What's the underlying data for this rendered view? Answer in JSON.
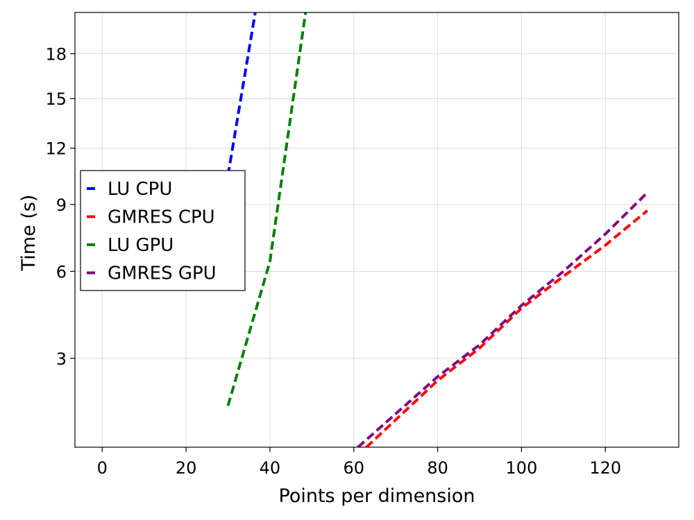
{
  "chart_data": {
    "type": "line",
    "title": "",
    "xlabel": "Points per dimension",
    "ylabel": "Time (s)",
    "xlim": [
      -6.5,
      137.5
    ],
    "ylim": [
      1.0,
      21.0
    ],
    "y_scale": "sqrt",
    "x_ticks": [
      0,
      20,
      40,
      60,
      80,
      100,
      120
    ],
    "x_tick_labels": [
      "0",
      "20",
      "40",
      "60",
      "80",
      "100",
      "120"
    ],
    "y_ticks": [
      3,
      6,
      9,
      12,
      15,
      18
    ],
    "y_tick_labels": [
      "3",
      "6",
      "9",
      "12",
      "15",
      "18"
    ],
    "grid": true,
    "legend_position": "left",
    "line_style": "dashed",
    "series": [
      {
        "name": "LU CPU",
        "color": "#0000ff",
        "points": [
          [
            30,
            10.5
          ],
          [
            36.5,
            21.0
          ]
        ]
      },
      {
        "name": "GMRES CPU",
        "color": "#ff0000",
        "points": [
          [
            63,
            1.0
          ],
          [
            80,
            2.4
          ],
          [
            90,
            3.3
          ],
          [
            100,
            4.6
          ],
          [
            110,
            5.8
          ],
          [
            120,
            7.1
          ],
          [
            130,
            8.7
          ]
        ]
      },
      {
        "name": "LU GPU",
        "color": "#008000",
        "points": [
          [
            30,
            1.8
          ],
          [
            40,
            6.4
          ],
          [
            48.5,
            21.0
          ]
        ]
      },
      {
        "name": "GMRES GPU",
        "color": "#800080",
        "points": [
          [
            61,
            1.0
          ],
          [
            80,
            2.5
          ],
          [
            90,
            3.4
          ],
          [
            100,
            4.7
          ],
          [
            110,
            6.0
          ],
          [
            120,
            7.6
          ],
          [
            130,
            9.6
          ]
        ]
      }
    ]
  }
}
